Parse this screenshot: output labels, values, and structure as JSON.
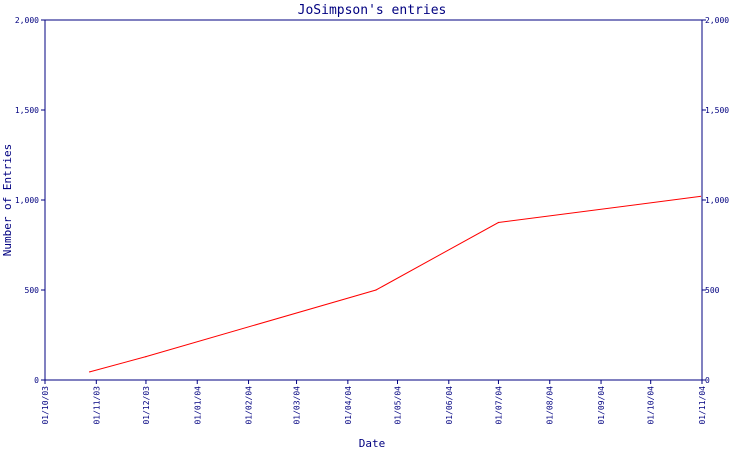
{
  "chart_data": {
    "type": "line",
    "title": "JoSimpson's entries",
    "xlabel": "Date",
    "ylabel": "Number of Entries",
    "x_ticks": [
      "01/10/03",
      "01/11/03",
      "01/12/03",
      "01/01/04",
      "01/02/04",
      "01/03/04",
      "01/04/04",
      "01/05/04",
      "01/06/04",
      "01/07/04",
      "01/08/04",
      "01/09/04",
      "01/10/04",
      "01/11/04"
    ],
    "y_ticks": [
      "0",
      "500",
      "1,000",
      "1,500",
      "2,000"
    ],
    "ylim": [
      0,
      2000
    ],
    "right_axis": true,
    "grid": false,
    "series": [
      {
        "color": "#ff0000",
        "points": [
          {
            "x": "2003-10-28",
            "y": 45
          },
          {
            "x": "2003-12-01",
            "y": 130
          },
          {
            "x": "2004-04-18",
            "y": 500
          },
          {
            "x": "2004-07-01",
            "y": 875
          },
          {
            "x": "2004-10-31",
            "y": 1020
          }
        ]
      }
    ]
  }
}
